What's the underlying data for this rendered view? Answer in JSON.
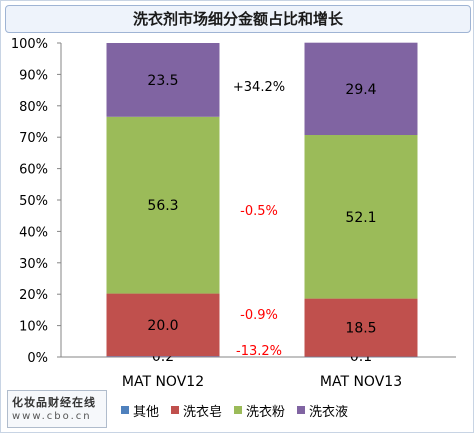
{
  "chart_data": {
    "type": "bar",
    "stacked": true,
    "title": "洗衣剂市场细分金额占比和增长",
    "categories": [
      "MAT NOV12",
      "MAT NOV13"
    ],
    "series": [
      {
        "name": "其他",
        "color": "#4f81bd",
        "values": [
          0.2,
          0.1
        ]
      },
      {
        "name": "洗衣皂",
        "color": "#c0504d",
        "values": [
          20.0,
          18.5
        ]
      },
      {
        "name": "洗衣粉",
        "color": "#9bbb59",
        "values": [
          56.3,
          52.1
        ]
      },
      {
        "name": "洗衣液",
        "color": "#8064a2",
        "values": [
          23.5,
          29.4
        ]
      }
    ],
    "data_labels": [
      [
        "0.2",
        "0.1"
      ],
      [
        "20.0",
        "18.5"
      ],
      [
        "56.3",
        "52.1"
      ],
      [
        "23.5",
        "29.4"
      ]
    ],
    "growth_labels": [
      {
        "series": "其他",
        "text": "-13.2%",
        "color": "#ff0000"
      },
      {
        "series": "洗衣皂",
        "text": "-0.9%",
        "color": "#ff0000"
      },
      {
        "series": "洗衣粉",
        "text": "-0.5%",
        "color": "#ff0000"
      },
      {
        "series": "洗衣液",
        "text": "+34.2%",
        "color": "#000000"
      }
    ],
    "ylim": [
      0,
      100
    ],
    "yticks": [
      "0%",
      "10%",
      "20%",
      "30%",
      "40%",
      "50%",
      "60%",
      "70%",
      "80%",
      "90%",
      "100%"
    ],
    "legend_position": "bottom"
  },
  "watermark": {
    "brand": "化妆品财经在线",
    "url": "www.cbo.cn"
  }
}
